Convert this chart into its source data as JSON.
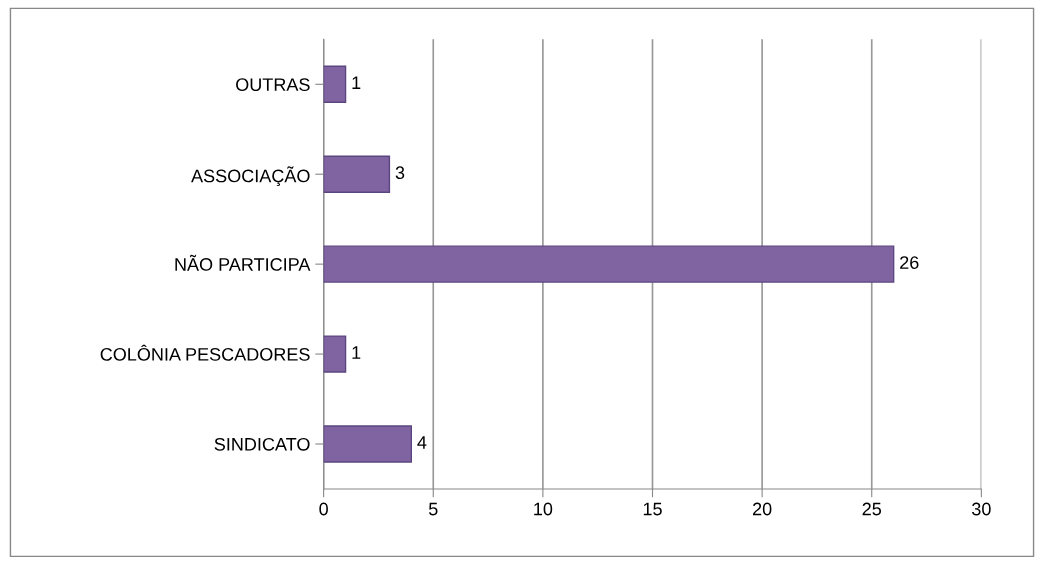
{
  "chart_data": {
    "type": "bar",
    "orientation": "horizontal",
    "categories": [
      "OUTRAS",
      "ASSOCIAÇÃO",
      "NÃO PARTICIPA",
      "COLÔNIA PESCADORES",
      "SINDICATO"
    ],
    "values": [
      1,
      3,
      26,
      1,
      4
    ],
    "color": "#8064a2",
    "xlim": [
      0,
      30
    ],
    "xticks": [
      0,
      5,
      10,
      15,
      20,
      25,
      30
    ],
    "grid": "x",
    "data_labels": true
  }
}
